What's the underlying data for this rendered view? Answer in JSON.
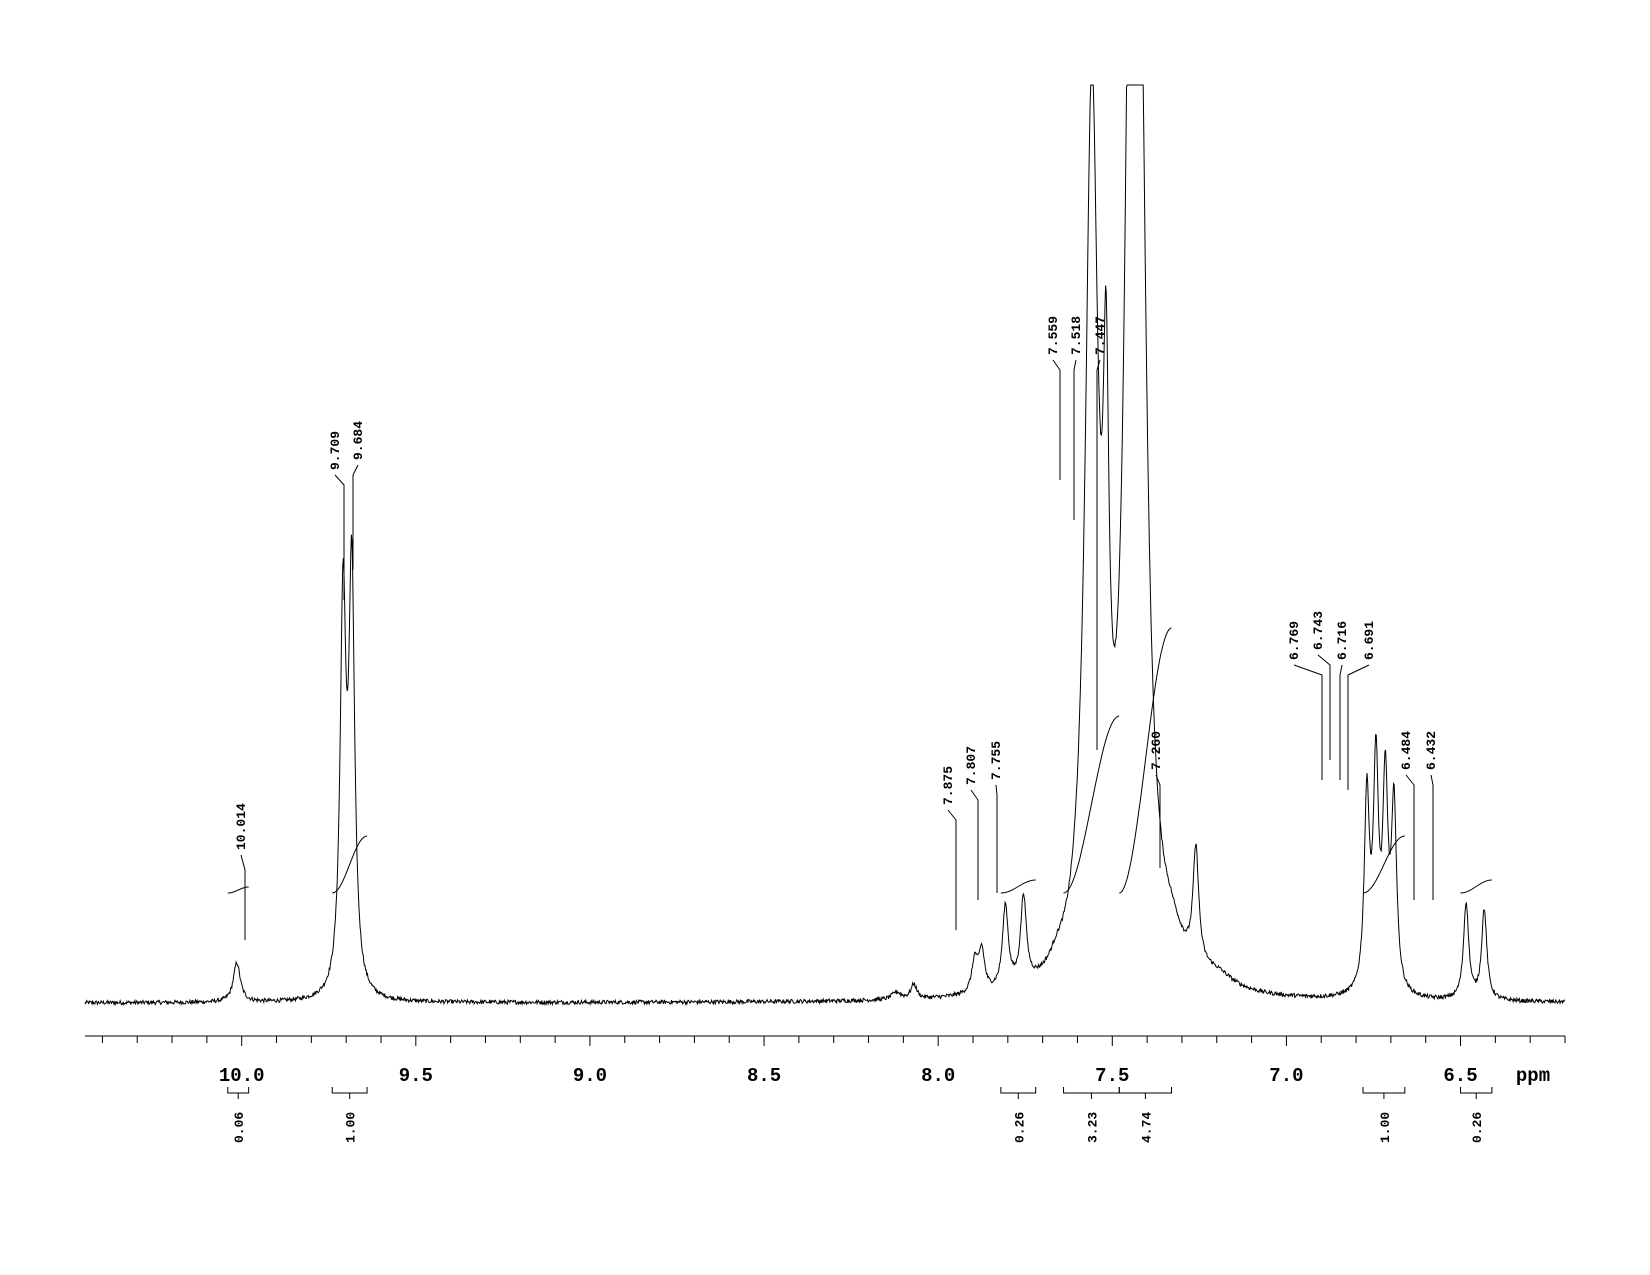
{
  "chart_data": {
    "type": "line",
    "title": "",
    "xlabel": "ppm",
    "ylabel": "",
    "x_reversed": true,
    "xlim": [
      10.45,
      6.2
    ],
    "ylim": [
      0,
      100
    ],
    "grid": false,
    "x_ticks_major": [
      {
        "value": 10.0,
        "label": "10.0"
      },
      {
        "value": 9.5,
        "label": "9.5"
      },
      {
        "value": 9.0,
        "label": "9.0"
      },
      {
        "value": 8.5,
        "label": "8.5"
      },
      {
        "value": 8.0,
        "label": "8.0"
      },
      {
        "value": 7.5,
        "label": "7.5"
      },
      {
        "value": 7.0,
        "label": "7.0"
      },
      {
        "value": 6.5,
        "label": "6.5"
      }
    ],
    "minor_tick_step": 0.1,
    "peaks": [
      {
        "x": 10.014,
        "height": 4.3,
        "width": 0.012
      },
      {
        "x": 9.709,
        "height": 42,
        "width": 0.01
      },
      {
        "x": 9.684,
        "height": 45,
        "width": 0.01
      },
      {
        "x": 8.07,
        "height": 1.6,
        "width": 0.01
      },
      {
        "x": 8.12,
        "height": 0.8,
        "width": 0.015
      },
      {
        "x": 7.895,
        "height": 3.5,
        "width": 0.01
      },
      {
        "x": 7.875,
        "height": 4.5,
        "width": 0.01
      },
      {
        "x": 7.807,
        "height": 9,
        "width": 0.01
      },
      {
        "x": 7.755,
        "height": 9.5,
        "width": 0.01
      },
      {
        "x": 7.66,
        "height": 1.2,
        "width": 0.025
      },
      {
        "x": 7.559,
        "height": 95,
        "width": 0.022
      },
      {
        "x": 7.518,
        "height": 45,
        "width": 0.01
      },
      {
        "x": 7.447,
        "height": 100,
        "width": 0.02
      },
      {
        "x": 7.42,
        "height": 85,
        "width": 0.022
      },
      {
        "x": 7.33,
        "height": 3,
        "width": 0.04
      },
      {
        "x": 7.26,
        "height": 12.5,
        "width": 0.01
      },
      {
        "x": 7.2,
        "height": 1.5,
        "width": 0.06
      },
      {
        "x": 6.769,
        "height": 21,
        "width": 0.009
      },
      {
        "x": 6.743,
        "height": 24,
        "width": 0.009
      },
      {
        "x": 6.716,
        "height": 22,
        "width": 0.009
      },
      {
        "x": 6.691,
        "height": 20,
        "width": 0.009
      },
      {
        "x": 6.484,
        "height": 10.5,
        "width": 0.009
      },
      {
        "x": 6.432,
        "height": 9.8,
        "width": 0.009
      }
    ],
    "peak_labels": [
      {
        "text": "10.014",
        "x": 10.014
      },
      {
        "text": "9.709",
        "x": 9.709
      },
      {
        "text": "9.684",
        "x": 9.684
      },
      {
        "text": "7.875",
        "x": 7.875
      },
      {
        "text": "7.807",
        "x": 7.807
      },
      {
        "text": "7.755",
        "x": 7.755
      },
      {
        "text": "7.559",
        "x": 7.559
      },
      {
        "text": "7.518",
        "x": 7.518
      },
      {
        "text": "7.447",
        "x": 7.447
      },
      {
        "text": "7.260",
        "x": 7.26
      },
      {
        "text": "6.769",
        "x": 6.769
      },
      {
        "text": "6.743",
        "x": 6.743
      },
      {
        "text": "6.716",
        "x": 6.716
      },
      {
        "text": "6.691",
        "x": 6.691
      },
      {
        "text": "6.484",
        "x": 6.484
      },
      {
        "text": "6.432",
        "x": 6.432
      }
    ],
    "integrals": [
      {
        "from": 10.04,
        "to": 9.98,
        "value": "0.06"
      },
      {
        "from": 9.74,
        "to": 9.64,
        "value": "1.00"
      },
      {
        "from": 7.82,
        "to": 7.72,
        "value": "0.26"
      },
      {
        "from": 7.64,
        "to": 7.48,
        "value": "3.23"
      },
      {
        "from": 7.48,
        "to": 7.33,
        "value": "4.74"
      },
      {
        "from": 6.78,
        "to": 6.66,
        "value": "1.00"
      },
      {
        "from": 6.5,
        "to": 6.41,
        "value": "0.26"
      }
    ]
  }
}
